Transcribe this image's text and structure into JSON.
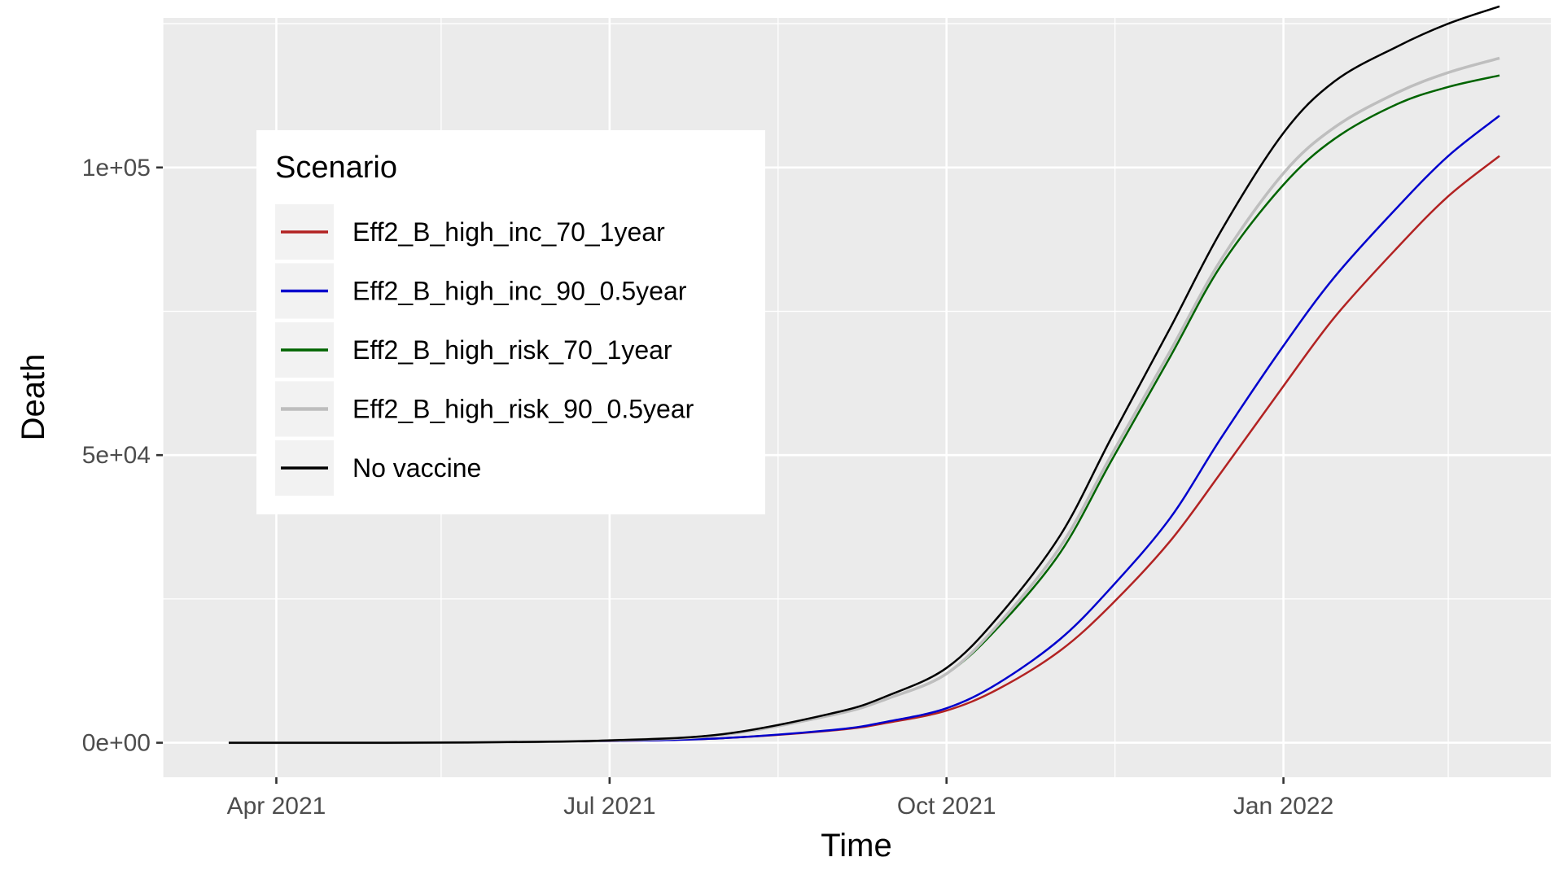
{
  "chart_data": {
    "type": "line",
    "xlabel": "Time",
    "ylabel": "Death",
    "x_range": [
      "2021-03-01",
      "2022-03-15"
    ],
    "ylim": [
      -6000,
      126000
    ],
    "x_ticks": [
      {
        "date": "2021-04-01",
        "label": "Apr 2021"
      },
      {
        "date": "2021-07-01",
        "label": "Jul 2021"
      },
      {
        "date": "2021-10-01",
        "label": "Oct 2021"
      },
      {
        "date": "2022-01-01",
        "label": "Jan 2022"
      }
    ],
    "x_minor_ticks": [
      "2021-03-01",
      "2021-05-16",
      "2021-08-16",
      "2021-11-16",
      "2022-02-15"
    ],
    "y_ticks": [
      {
        "value": 0,
        "label": "0e+00"
      },
      {
        "value": 50000,
        "label": "5e+04"
      },
      {
        "value": 100000,
        "label": "1e+05"
      }
    ],
    "y_minor_ticks": [
      25000,
      75000,
      125000
    ],
    "grid": true,
    "legend": {
      "title": "Scenario",
      "position": "top-left"
    },
    "series": [
      {
        "name": "Eff2_B_high_inc_70_1year",
        "color": "#b22222",
        "width": 2.5,
        "x": [
          "2021-03-19",
          "2021-05-01",
          "2021-06-01",
          "2021-07-01",
          "2021-08-01",
          "2021-09-01",
          "2021-09-15",
          "2021-10-01",
          "2021-10-15",
          "2021-11-01",
          "2021-11-15",
          "2021-12-01",
          "2021-12-15",
          "2022-01-01",
          "2022-01-15",
          "2022-02-01",
          "2022-02-15",
          "2022-03-01"
        ],
        "y": [
          0,
          0,
          100,
          300,
          800,
          2200,
          3500,
          5600,
          9300,
          16000,
          24000,
          35000,
          47000,
          62000,
          74000,
          86000,
          95000,
          102000
        ]
      },
      {
        "name": "Eff2_B_high_inc_90_0.5year",
        "color": "#0000cd",
        "width": 2.5,
        "x": [
          "2021-03-19",
          "2021-05-01",
          "2021-06-01",
          "2021-07-01",
          "2021-08-01",
          "2021-09-01",
          "2021-09-15",
          "2021-10-01",
          "2021-10-15",
          "2021-11-01",
          "2021-11-15",
          "2021-12-01",
          "2021-12-15",
          "2022-01-01",
          "2022-01-15",
          "2022-02-01",
          "2022-02-15",
          "2022-03-01"
        ],
        "y": [
          0,
          0,
          100,
          300,
          800,
          2300,
          3700,
          6000,
          10300,
          18000,
          27000,
          39000,
          53000,
          69000,
          81000,
          93000,
          102000,
          109000
        ]
      },
      {
        "name": "Eff2_B_high_risk_70_1year",
        "color": "#006400",
        "width": 2.5,
        "x": [
          "2021-03-19",
          "2021-05-01",
          "2021-06-01",
          "2021-07-01",
          "2021-08-01",
          "2021-09-01",
          "2021-09-15",
          "2021-10-01",
          "2021-10-15",
          "2021-11-01",
          "2021-11-15",
          "2021-12-01",
          "2021-12-15",
          "2022-01-01",
          "2022-01-15",
          "2022-02-01",
          "2022-02-15",
          "2022-03-01"
        ],
        "y": [
          0,
          0,
          100,
          400,
          1400,
          5000,
          7700,
          12000,
          20000,
          33000,
          49000,
          67000,
          83000,
          97000,
          105000,
          111000,
          114000,
          116000
        ]
      },
      {
        "name": "Eff2_B_high_risk_90_0.5year",
        "color": "#bebebe",
        "width": 3.5,
        "x": [
          "2021-03-19",
          "2021-05-01",
          "2021-06-01",
          "2021-07-01",
          "2021-08-01",
          "2021-09-01",
          "2021-09-15",
          "2021-10-01",
          "2021-10-15",
          "2021-11-01",
          "2021-11-15",
          "2021-12-01",
          "2021-12-15",
          "2022-01-01",
          "2022-01-15",
          "2022-02-01",
          "2022-02-15",
          "2022-03-01"
        ],
        "y": [
          0,
          0,
          100,
          400,
          1400,
          5000,
          7700,
          12000,
          20500,
          34000,
          50000,
          68000,
          84000,
          99000,
          107000,
          113000,
          116500,
          119000
        ]
      },
      {
        "name": "No vaccine",
        "color": "#000000",
        "width": 2.5,
        "x": [
          "2021-03-19",
          "2021-05-01",
          "2021-06-01",
          "2021-07-01",
          "2021-08-01",
          "2021-09-01",
          "2021-09-15",
          "2021-10-01",
          "2021-10-15",
          "2021-11-01",
          "2021-11-15",
          "2021-12-01",
          "2021-12-15",
          "2022-01-01",
          "2022-01-15",
          "2022-02-01",
          "2022-02-15",
          "2022-03-01"
        ],
        "y": [
          0,
          0,
          100,
          400,
          1500,
          5300,
          8200,
          13000,
          21800,
          36000,
          53000,
          72000,
          89000,
          106000,
          115000,
          121000,
          125000,
          128000
        ]
      }
    ]
  }
}
